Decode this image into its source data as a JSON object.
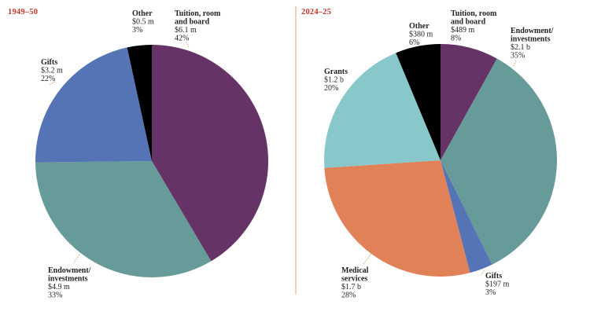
{
  "colors": {
    "accent": "#c0392b",
    "divider": "#d9a382",
    "tuition": "#663366",
    "endowment": "#669b99",
    "gifts": "#5574b6",
    "other": "#000000",
    "grants": "#88c8ca",
    "medical": "#e18157"
  },
  "chart_data": [
    {
      "type": "pie",
      "title": "1949–50",
      "slices": [
        {
          "key": "tuition",
          "label_lines": [
            "Tuition, room",
            "and board"
          ],
          "amount": "$6.1 m",
          "percent_label": "42%",
          "value": 6.1
        },
        {
          "key": "endowment",
          "label_lines": [
            "Endowment/",
            "investments"
          ],
          "amount": "$4.9 m",
          "percent_label": "33%",
          "value": 4.9
        },
        {
          "key": "gifts",
          "label_lines": [
            "Gifts"
          ],
          "amount": "$3.2 m",
          "percent_label": "22%",
          "value": 3.2
        },
        {
          "key": "other",
          "label_lines": [
            "Other"
          ],
          "amount": "$0.5 m",
          "percent_label": "3%",
          "value": 0.5
        }
      ]
    },
    {
      "type": "pie",
      "title": "2024–25",
      "slices": [
        {
          "key": "tuition",
          "label_lines": [
            "Tuition, room",
            "and board"
          ],
          "amount": "$489 m",
          "percent_label": "8%",
          "value": 0.489
        },
        {
          "key": "endowment",
          "label_lines": [
            "Endowment/",
            "investments"
          ],
          "amount": "$2.1 b",
          "percent_label": "35%",
          "value": 2.1
        },
        {
          "key": "gifts",
          "label_lines": [
            "Gifts"
          ],
          "amount": "$197 m",
          "percent_label": "3%",
          "value": 0.197
        },
        {
          "key": "medical",
          "label_lines": [
            "Medical",
            "services"
          ],
          "amount": "$1.7 b",
          "percent_label": "28%",
          "value": 1.7
        },
        {
          "key": "grants",
          "label_lines": [
            "Grants"
          ],
          "amount": "$1.2 b",
          "percent_label": "20%",
          "value": 1.2
        },
        {
          "key": "other",
          "label_lines": [
            "Other"
          ],
          "amount": "$380 m",
          "percent_label": "6%",
          "value": 0.38
        }
      ]
    }
  ]
}
